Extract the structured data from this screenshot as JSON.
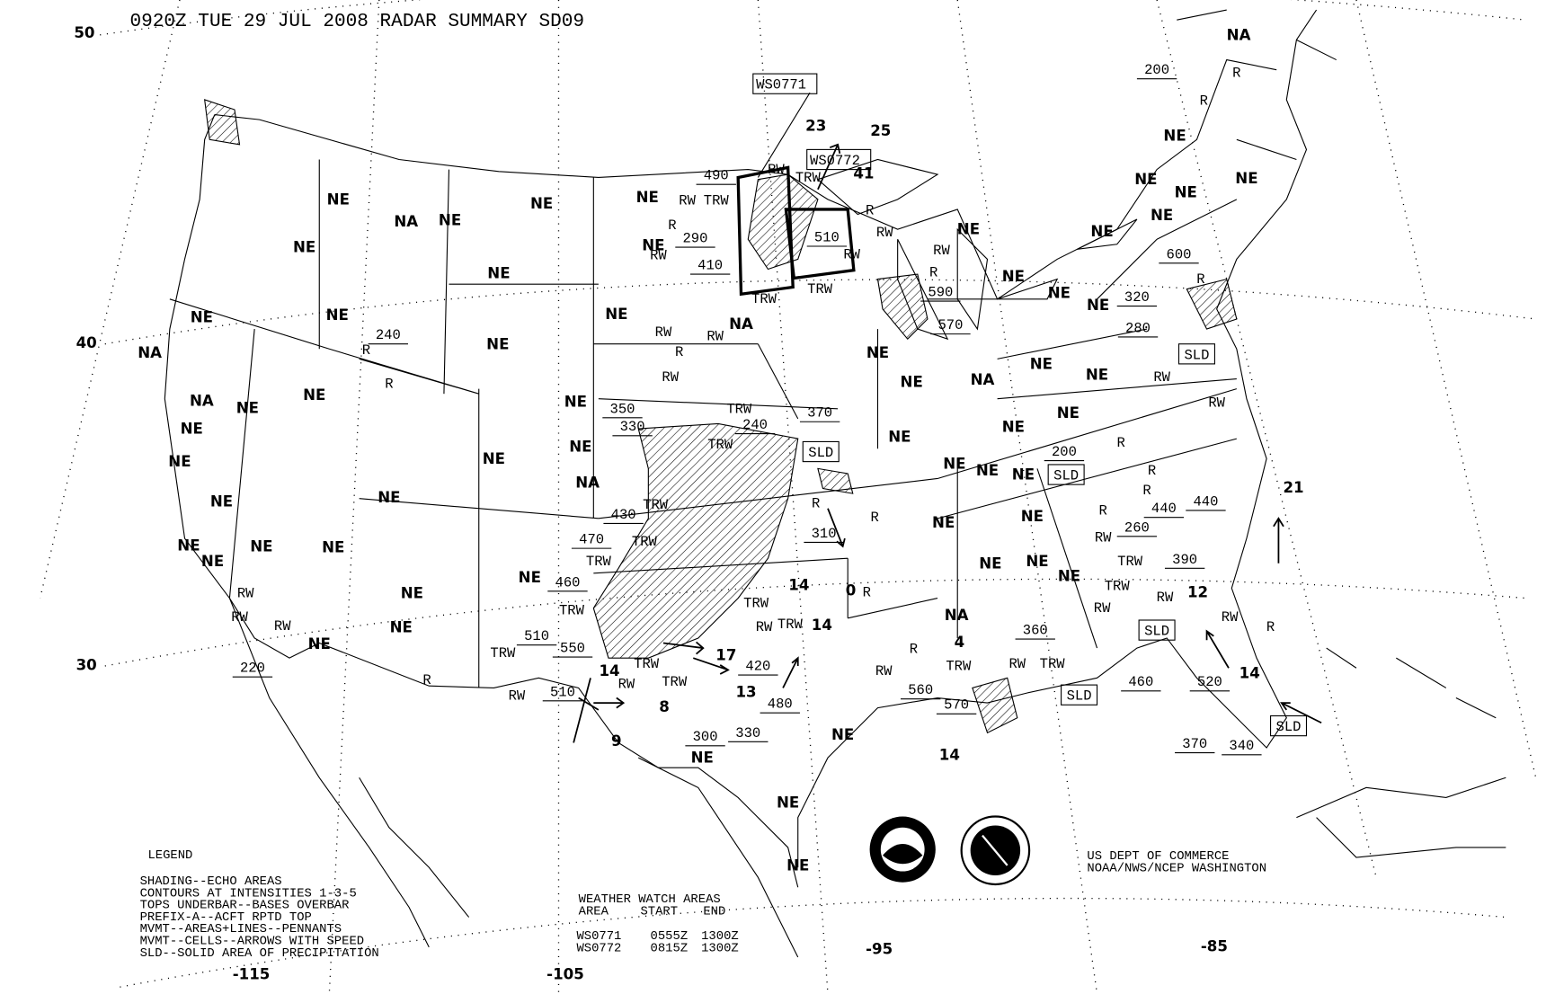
{
  "title": "0920Z TUE 29 JUL 2008 RADAR SUMMARY SD09",
  "latitude_labels": [
    "50",
    "40",
    "30"
  ],
  "longitude_labels": [
    "-115",
    "-105",
    "-95",
    "-85"
  ],
  "legend": {
    "heading": "LEGEND",
    "lines": [
      "SHADING--ECHO AREAS",
      "CONTOURS AT INTENSITIES 1-3-5",
      "TOPS UNDERBAR--BASES OVERBAR",
      "PREFIX-A--ACFT RPTD TOP",
      "MVMT--AREAS+LINES--PENNANTS",
      "MVMT--CELLS--ARROWS WITH SPEED",
      "SLD--SOLID AREA OF PRECIPITATION"
    ]
  },
  "watch_table": {
    "heading": "WEATHER WATCH AREAS",
    "columns": [
      "AREA",
      "START",
      "END"
    ],
    "rows": [
      [
        "WS0771",
        "0555Z",
        "1300Z"
      ],
      [
        "WS0772",
        "0815Z",
        "1300Z"
      ]
    ]
  },
  "credit": [
    "US DEPT OF COMMERCE",
    "NOAA/NWS/NCEP WASHINGTON"
  ],
  "watch_boxes": [
    "WS0771",
    "WS0772"
  ],
  "region_labels": [
    "NE",
    "NA",
    "NE",
    "NE",
    "NE",
    "NE",
    "NE",
    "NE",
    "NE",
    "NE",
    "NE",
    "NA",
    "NE",
    "NA",
    "NE",
    "NE",
    "NA",
    "NE",
    "NE",
    "NE",
    "NE",
    "NE",
    "NA",
    "NE",
    "NE",
    "NE",
    "NE",
    "NE",
    "NE",
    "NE",
    "NE",
    "NE",
    "NE",
    "NE",
    "NE",
    "NE",
    "NA",
    "NE",
    "NE",
    "NE",
    "NE",
    "NE",
    "NE",
    "NE",
    "NE",
    "NE",
    "NE",
    "NE",
    "NE",
    "NE",
    "NE",
    "NA",
    "NE",
    "NE",
    "NE",
    "NE",
    "NE",
    "NE",
    "NA",
    "NE",
    "NE",
    "NE",
    "NE",
    "NE",
    "NE"
  ],
  "echo_tops": [
    "490",
    "290",
    "410",
    "510",
    "590",
    "570",
    "240",
    "200",
    "600",
    "320",
    "280",
    "350",
    "330",
    "370",
    "240",
    "430",
    "470",
    "460",
    "510",
    "550",
    "510",
    "420",
    "480",
    "300",
    "330",
    "220",
    "560",
    "570",
    "200",
    "440",
    "440",
    "260",
    "390",
    "360",
    "460",
    "520",
    "370",
    "340",
    "310"
  ],
  "precip_types": [
    "RW",
    "TRW",
    "RW",
    "TRW",
    "R",
    "RW",
    "R",
    "RW",
    "RW",
    "RW",
    "TRW",
    "TRW",
    "R",
    "R",
    "R",
    "RW",
    "R",
    "RW",
    "RW",
    "TRW",
    "TRW",
    "TRW",
    "TRW",
    "TRW",
    "TRW",
    "TRW",
    "TRW",
    "RW",
    "TRW",
    "RW",
    "TRW",
    "R",
    "R",
    "R",
    "R",
    "R",
    "RW",
    "RW",
    "R",
    "R",
    "R",
    "RW",
    "RW",
    "RW",
    "R",
    "RW",
    "RW",
    "TRW",
    "TRW",
    "R",
    "R",
    "R",
    "RW",
    "RW",
    "RW",
    "R",
    "RW",
    "TRW",
    "TRW",
    "RW",
    "TRW"
  ],
  "cell_speeds": [
    "23",
    "25",
    "41",
    "21",
    "14",
    "0",
    "14",
    "17",
    "13",
    "8",
    "9",
    "14",
    "12",
    "14",
    "4",
    "14"
  ],
  "sld_labels": [
    "SLD",
    "SLD",
    "SLD",
    "SLD",
    "SLD",
    "SLD"
  ],
  "logos": [
    "NOAA",
    "NATIONAL WEATHER SERVICE"
  ]
}
